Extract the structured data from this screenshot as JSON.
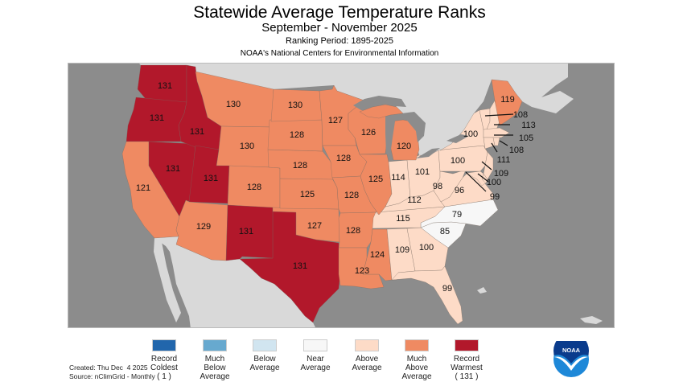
{
  "header": {
    "title": "Statewide Average Temperature Ranks",
    "subtitle": "September - November 2025",
    "ranking_period": "Ranking Period: 1895-2025",
    "organization": "NOAA's National Centers for Environmental Information"
  },
  "colors": {
    "ocean": "#8c8c8c",
    "foreign_land": "#d9d9d9",
    "record_coldest": "#2166ac",
    "much_below": "#67a9cf",
    "below": "#d1e5f0",
    "near": "#f7f7f7",
    "above": "#fddbc7",
    "much_above": "#ef8a62",
    "record_warmest": "#b2182b"
  },
  "states": {
    "WA": {
      "rank": "131",
      "category": "record_warmest"
    },
    "OR": {
      "rank": "131",
      "category": "record_warmest"
    },
    "ID": {
      "rank": "131",
      "category": "record_warmest"
    },
    "NV": {
      "rank": "131",
      "category": "record_warmest"
    },
    "UT": {
      "rank": "131",
      "category": "record_warmest"
    },
    "NM": {
      "rank": "131",
      "category": "record_warmest"
    },
    "TX": {
      "rank": "131",
      "category": "record_warmest"
    },
    "CA": {
      "rank": "121",
      "category": "much_above"
    },
    "AZ": {
      "rank": "129",
      "category": "much_above"
    },
    "MT": {
      "rank": "130",
      "category": "much_above"
    },
    "WY": {
      "rank": "130",
      "category": "much_above"
    },
    "CO": {
      "rank": "128",
      "category": "much_above"
    },
    "ND": {
      "rank": "130",
      "category": "much_above"
    },
    "SD": {
      "rank": "128",
      "category": "much_above"
    },
    "NE": {
      "rank": "128",
      "category": "much_above"
    },
    "KS": {
      "rank": "125",
      "category": "much_above"
    },
    "OK": {
      "rank": "127",
      "category": "much_above"
    },
    "MN": {
      "rank": "127",
      "category": "much_above"
    },
    "WI": {
      "rank": "126",
      "category": "much_above"
    },
    "IA": {
      "rank": "128",
      "category": "much_above"
    },
    "MO": {
      "rank": "128",
      "category": "much_above"
    },
    "AR": {
      "rank": "128",
      "category": "much_above"
    },
    "LA": {
      "rank": "123",
      "category": "much_above"
    },
    "MS": {
      "rank": "124",
      "category": "much_above"
    },
    "IL": {
      "rank": "125",
      "category": "much_above"
    },
    "MI": {
      "rank": "120",
      "category": "much_above"
    },
    "ME": {
      "rank": "119",
      "category": "much_above"
    },
    "IN": {
      "rank": "114",
      "category": "above"
    },
    "OH": {
      "rank": "101",
      "category": "above"
    },
    "KY": {
      "rank": "112",
      "category": "above"
    },
    "TN": {
      "rank": "115",
      "category": "above"
    },
    "WV": {
      "rank": "98",
      "category": "above"
    },
    "VA": {
      "rank": "96",
      "category": "above"
    },
    "PA": {
      "rank": "100",
      "category": "above"
    },
    "NY": {
      "rank": "100",
      "category": "above"
    },
    "GA": {
      "rank": "100",
      "category": "above"
    },
    "AL": {
      "rank": "109",
      "category": "above"
    },
    "FL": {
      "rank": "99",
      "category": "above"
    },
    "VT": {
      "rank": "108",
      "category": "above"
    },
    "NH": {
      "rank": "113",
      "category": "above"
    },
    "MA": {
      "rank": "105",
      "category": "above"
    },
    "RI": {
      "rank": "108",
      "category": "above"
    },
    "CT": {
      "rank": "111",
      "category": "above"
    },
    "NJ": {
      "rank": "109",
      "category": "above"
    },
    "DE": {
      "rank": "100",
      "category": "above"
    },
    "MD": {
      "rank": "99",
      "category": "above"
    },
    "NC": {
      "rank": "79",
      "category": "near"
    },
    "SC": {
      "rank": "85",
      "category": "near"
    }
  },
  "legend": [
    {
      "key": "record_coldest",
      "lines": [
        "Record",
        "Coldest",
        "( 1 )"
      ]
    },
    {
      "key": "much_below",
      "lines": [
        "Much",
        "Below",
        "Average"
      ]
    },
    {
      "key": "below",
      "lines": [
        "Below",
        "Average"
      ]
    },
    {
      "key": "near",
      "lines": [
        "Near",
        "Average"
      ]
    },
    {
      "key": "above",
      "lines": [
        "Above",
        "Average"
      ]
    },
    {
      "key": "much_above",
      "lines": [
        "Much",
        "Above",
        "Average"
      ]
    },
    {
      "key": "record_warmest",
      "lines": [
        "Record",
        "Warmest",
        "( 131 )"
      ]
    }
  ],
  "footer": {
    "created": "Created: Thu Dec  4 2025",
    "source": "Source: nClimGrid - Monthly",
    "logo_text": "NOAA"
  }
}
